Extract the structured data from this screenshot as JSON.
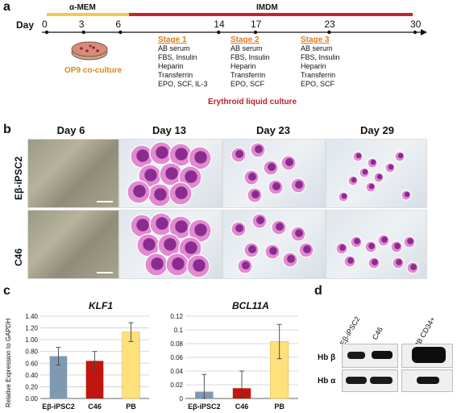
{
  "panel_a": {
    "letter": "a",
    "day_label": "Day",
    "medium_1": "α-MEM",
    "medium_2": "IMDM",
    "days": [
      "0",
      "3",
      "6",
      "14",
      "17",
      "23",
      "30"
    ],
    "coculture_label": "OP9 co-culture",
    "stages": [
      {
        "title": "Stage 1",
        "items": [
          "AB serum",
          "FBS, Insulin",
          "Heparin",
          "Transferrin",
          "EPO, SCF, IL-3"
        ]
      },
      {
        "title": "Stage 2",
        "items": [
          "AB serum",
          "FBS, Insulin",
          "Heparin",
          "Transferrin",
          "EPO, SCF"
        ]
      },
      {
        "title": "Stage 3",
        "items": [
          "AB serum",
          "FBS, Insulin",
          "Heparin",
          "Transferrin",
          "EPO, SCF"
        ]
      }
    ],
    "culture_label": "Erythroid liquid culture",
    "colors": {
      "amem": "#f2c94c",
      "imdm": "#c0272d",
      "stage": "#e07b1a",
      "culture": "#b5232a"
    }
  },
  "panel_b": {
    "letter": "b",
    "columns": [
      "Day 6",
      "Day 13",
      "Day 23",
      "Day 29"
    ],
    "rows": [
      "Eβ-iPSC2",
      "C46"
    ]
  },
  "panel_c": {
    "letter": "c",
    "ylabel": "Relative Expression to GAPDH",
    "chart_data": [
      {
        "type": "bar",
        "title": "KLF1",
        "categories": [
          "Eβ-iPSC2",
          "C46",
          "PB"
        ],
        "values": [
          0.72,
          0.64,
          1.13
        ],
        "errors": [
          0.15,
          0.16,
          0.16
        ],
        "ylim": [
          0,
          1.4
        ],
        "yticks": [
          "0.00",
          "0.20",
          "0.40",
          "0.60",
          "0.80",
          "1.00",
          "1.20",
          "1.40"
        ],
        "colors": [
          "#7f99b3",
          "#c0160f",
          "#ffe07a"
        ],
        "grid": true
      },
      {
        "type": "bar",
        "title": "BCL11A",
        "categories": [
          "Eβ-iPSC2",
          "C46",
          "PB"
        ],
        "values": [
          0.01,
          0.015,
          0.083
        ],
        "errors": [
          0.025,
          0.025,
          0.025
        ],
        "ylim": [
          0,
          0.12
        ],
        "yticks": [
          "0",
          "0.02",
          "0.04",
          "0.06",
          "0.08",
          "0.1",
          "0.12"
        ],
        "colors": [
          "#7f99b3",
          "#c0160f",
          "#ffe07a"
        ],
        "grid": true
      }
    ]
  },
  "panel_d": {
    "letter": "d",
    "lanes": [
      "Eβ-iPSC2",
      "C46",
      "PB CD34+"
    ],
    "rows": [
      "Hb β",
      "Hb α"
    ]
  }
}
